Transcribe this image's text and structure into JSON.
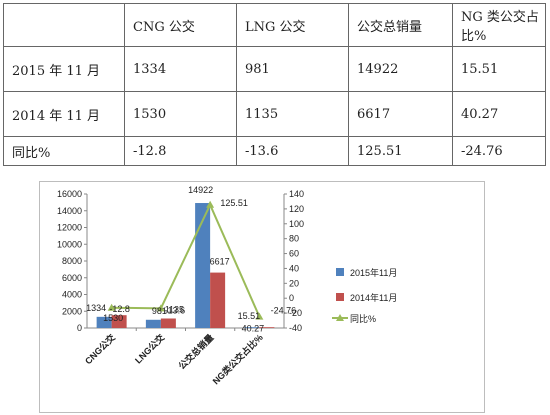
{
  "table": {
    "header": [
      "",
      "CNG 公交",
      "LNG 公交",
      "公交总销量",
      "NG 类公交占比%"
    ],
    "rows": [
      [
        "2015 年 11 月",
        "1334",
        "981",
        "14922",
        "15.51"
      ],
      [
        "2014 年 11 月",
        "1530",
        "1135",
        "6617",
        "40.27"
      ],
      [
        "同比%",
        "-12.8",
        "-13.6",
        "125.51",
        "-24.76"
      ]
    ]
  },
  "chart_data": {
    "type": "bar",
    "categories": [
      "CNG公交",
      "LNG公交",
      "公交总销量",
      "NG类公交占比%"
    ],
    "series": [
      {
        "name": "2015年11月",
        "type": "bar",
        "axis": "left",
        "color": "#4f81bd",
        "values": [
          1334,
          981,
          14922,
          15.51
        ],
        "labels": [
          "1334",
          "981",
          "14922",
          "15.51"
        ]
      },
      {
        "name": "2014年11月",
        "type": "bar",
        "axis": "left",
        "color": "#c0504d",
        "values": [
          1530,
          1135,
          6617,
          40.27
        ],
        "labels": [
          "1530",
          "1135",
          "6617",
          "40.27"
        ]
      },
      {
        "name": "同比%",
        "type": "line",
        "axis": "right",
        "color": "#9bbb59",
        "values": [
          -12.8,
          -13.6,
          125.51,
          -24.76
        ],
        "labels": [
          "-12.8",
          "-13.6",
          "125.51",
          "-24.76"
        ]
      }
    ],
    "left_axis": {
      "min": 0,
      "max": 16000,
      "step": 2000
    },
    "right_axis": {
      "min": -40,
      "max": 140,
      "step": 20
    },
    "legend_position": "right",
    "grid": false
  }
}
